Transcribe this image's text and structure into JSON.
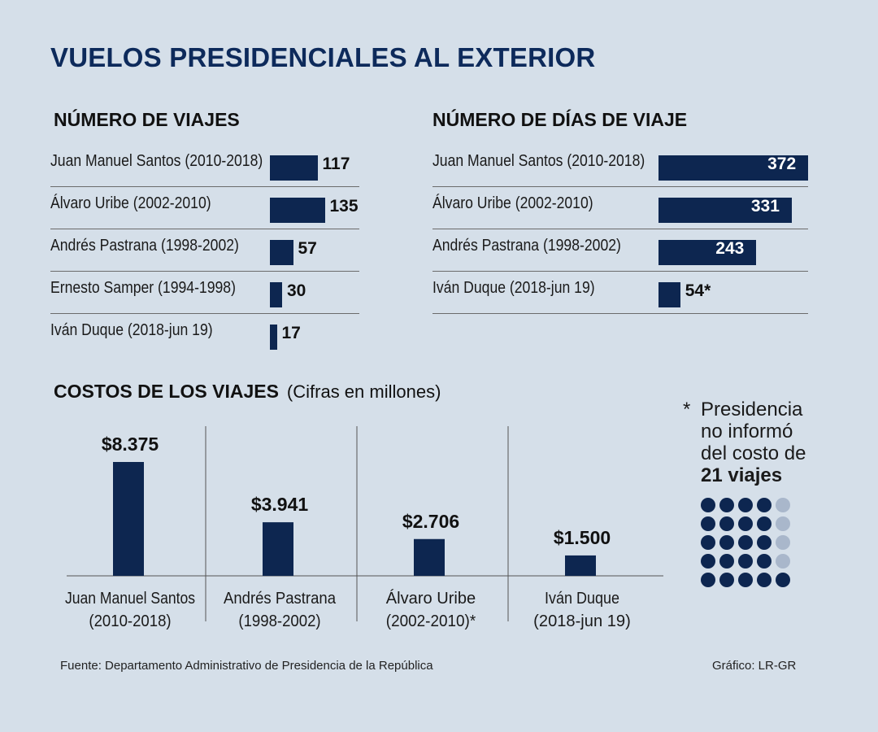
{
  "title": "VUELOS PRESIDENCIALES AL EXTERIOR",
  "colors": {
    "background": "#d5dfe9",
    "bar": "#0d2650",
    "dot_filled": "#0d2650",
    "dot_empty": "#a9b7cb",
    "title": "#0d2a5b"
  },
  "chart_data": [
    {
      "type": "bar",
      "orientation": "horizontal",
      "title": "NÚMERO DE VIAJES",
      "categories": [
        "Juan Manuel Santos (2010-2018)",
        "Álvaro Uribe (2002-2010)",
        "Andrés Pastrana (1998-2002)",
        "Ernesto Samper (1994-1998)",
        "Iván Duque (2018-jun 19)"
      ],
      "values": [
        117,
        135,
        57,
        30,
        17
      ],
      "value_labels": [
        "117",
        "135",
        "57",
        "30",
        "17"
      ]
    },
    {
      "type": "bar",
      "orientation": "horizontal",
      "title": "NÚMERO DE DÍAS DE VIAJE",
      "categories": [
        "Juan Manuel Santos (2010-2018)",
        "Álvaro Uribe (2002-2010)",
        "Andrés Pastrana (1998-2002)",
        "Iván Duque (2018-jun 19)"
      ],
      "values": [
        372,
        331,
        243,
        54
      ],
      "value_labels": [
        "372",
        "331",
        "243",
        "54*"
      ]
    },
    {
      "type": "bar",
      "orientation": "vertical",
      "title": "COSTOS DE LOS VIAJES",
      "subtitle": "(Cifras en millones)",
      "categories": [
        [
          "Juan Manuel Santos",
          "(2010-2018)"
        ],
        [
          "Andrés Pastrana",
          "(1998-2002)"
        ],
        [
          "Álvaro Uribe",
          "(2002-2010)*"
        ],
        [
          "Iván Duque",
          "(2018-jun 19)"
        ]
      ],
      "values": [
        8375,
        3941,
        2706,
        1500
      ],
      "value_labels": [
        "$8.375",
        "$3.941",
        "$2.706",
        "$1.500"
      ]
    },
    {
      "type": "waffle",
      "note_star": "*",
      "note_lines": [
        "Presidencia",
        "no informó",
        "del costo de"
      ],
      "note_emphasis": "21 viajes",
      "total": 25,
      "highlighted": 21
    }
  ],
  "footer": {
    "source": "Fuente: Departamento Administrativo de Presidencia de la República",
    "credit": "Gráfico: LR-GR"
  }
}
